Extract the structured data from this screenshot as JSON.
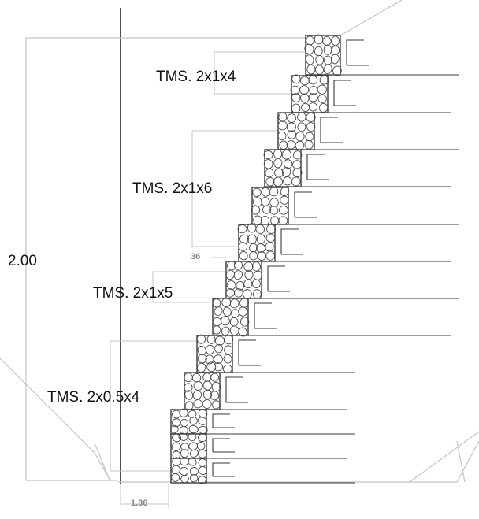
{
  "diagram": {
    "labels": {
      "height": "2.00",
      "step_offset": "36",
      "base_width": "1.36",
      "gabion_top": "TMS. 2x1x4",
      "gabion_upper_mid": "TMS. 2x1x6",
      "gabion_lower_mid": "TMS. 2x1x5",
      "gabion_bottom": "TMS. 2x0.5x4"
    },
    "colors": {
      "outline": "#3a3a3a",
      "dimension": "#bdbdbd",
      "stone": "#4a4a4a",
      "background": "#ffffff"
    }
  }
}
